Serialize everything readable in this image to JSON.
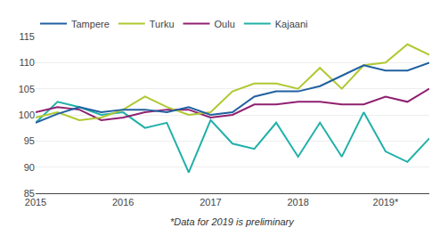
{
  "chart_data": {
    "type": "line",
    "categories": [
      "2015",
      null,
      null,
      null,
      "2016",
      null,
      null,
      null,
      "2017",
      null,
      null,
      null,
      "2018",
      null,
      null,
      null,
      "2019*",
      null,
      null
    ],
    "series": [
      {
        "name": "Kajaani",
        "color": "#20b0a8",
        "values": [
          98.5,
          102.5,
          101.5,
          100.0,
          100.5,
          97.5,
          98.5,
          89.0,
          99.0,
          94.5,
          93.5,
          98.5,
          92.0,
          98.5,
          92.0,
          100.5,
          93.0,
          91.0,
          95.5
        ]
      },
      {
        "name": "Oulu",
        "color": "#902070",
        "values": [
          100.5,
          101.5,
          101.0,
          99.0,
          99.5,
          100.5,
          101.0,
          101.0,
          99.5,
          100.0,
          102.0,
          102.0,
          102.5,
          102.5,
          102.0,
          102.0,
          103.5,
          102.5,
          105.0
        ]
      },
      {
        "name": "Turku",
        "color": "#b0c832",
        "values": [
          99.5,
          100.5,
          99.0,
          99.5,
          101.0,
          103.5,
          101.5,
          100.0,
          100.5,
          104.5,
          106.0,
          106.0,
          105.0,
          109.0,
          105.0,
          109.5,
          110.0,
          113.5,
          111.5
        ]
      },
      {
        "name": "Tampere",
        "color": "#2060a0",
        "values": [
          98.5,
          100.2,
          101.5,
          100.5,
          101.0,
          101.0,
          100.5,
          101.5,
          100.0,
          100.5,
          103.5,
          104.5,
          104.5,
          105.5,
          107.5,
          109.5,
          108.5,
          108.5,
          110.0
        ]
      }
    ],
    "ylim": [
      85,
      115
    ],
    "yticks": [
      85,
      90,
      95,
      100,
      105,
      110,
      115
    ],
    "grid": true,
    "legend": "upper left",
    "annotations": [
      "*Data for 2019 is preliminary"
    ]
  }
}
